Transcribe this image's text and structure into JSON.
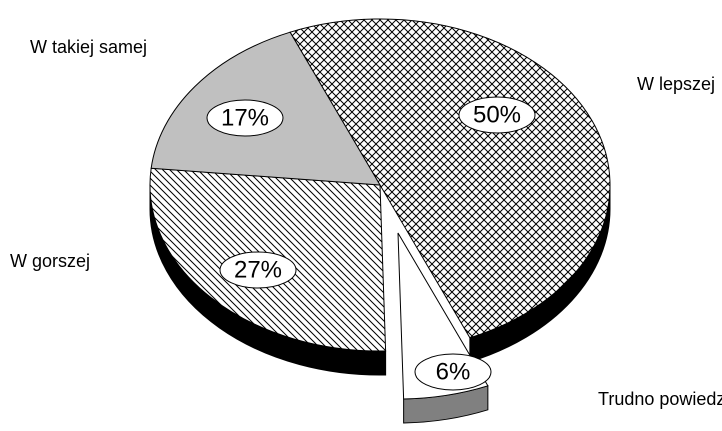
{
  "chart_data": {
    "type": "pie",
    "categories": [
      "W lepszej",
      "Trudno powiedzieć",
      "W gorszej",
      "W takiej samej"
    ],
    "values": [
      50,
      6,
      27,
      17
    ],
    "value_labels": [
      "50%",
      "6%",
      "27%",
      "17%"
    ]
  }
}
